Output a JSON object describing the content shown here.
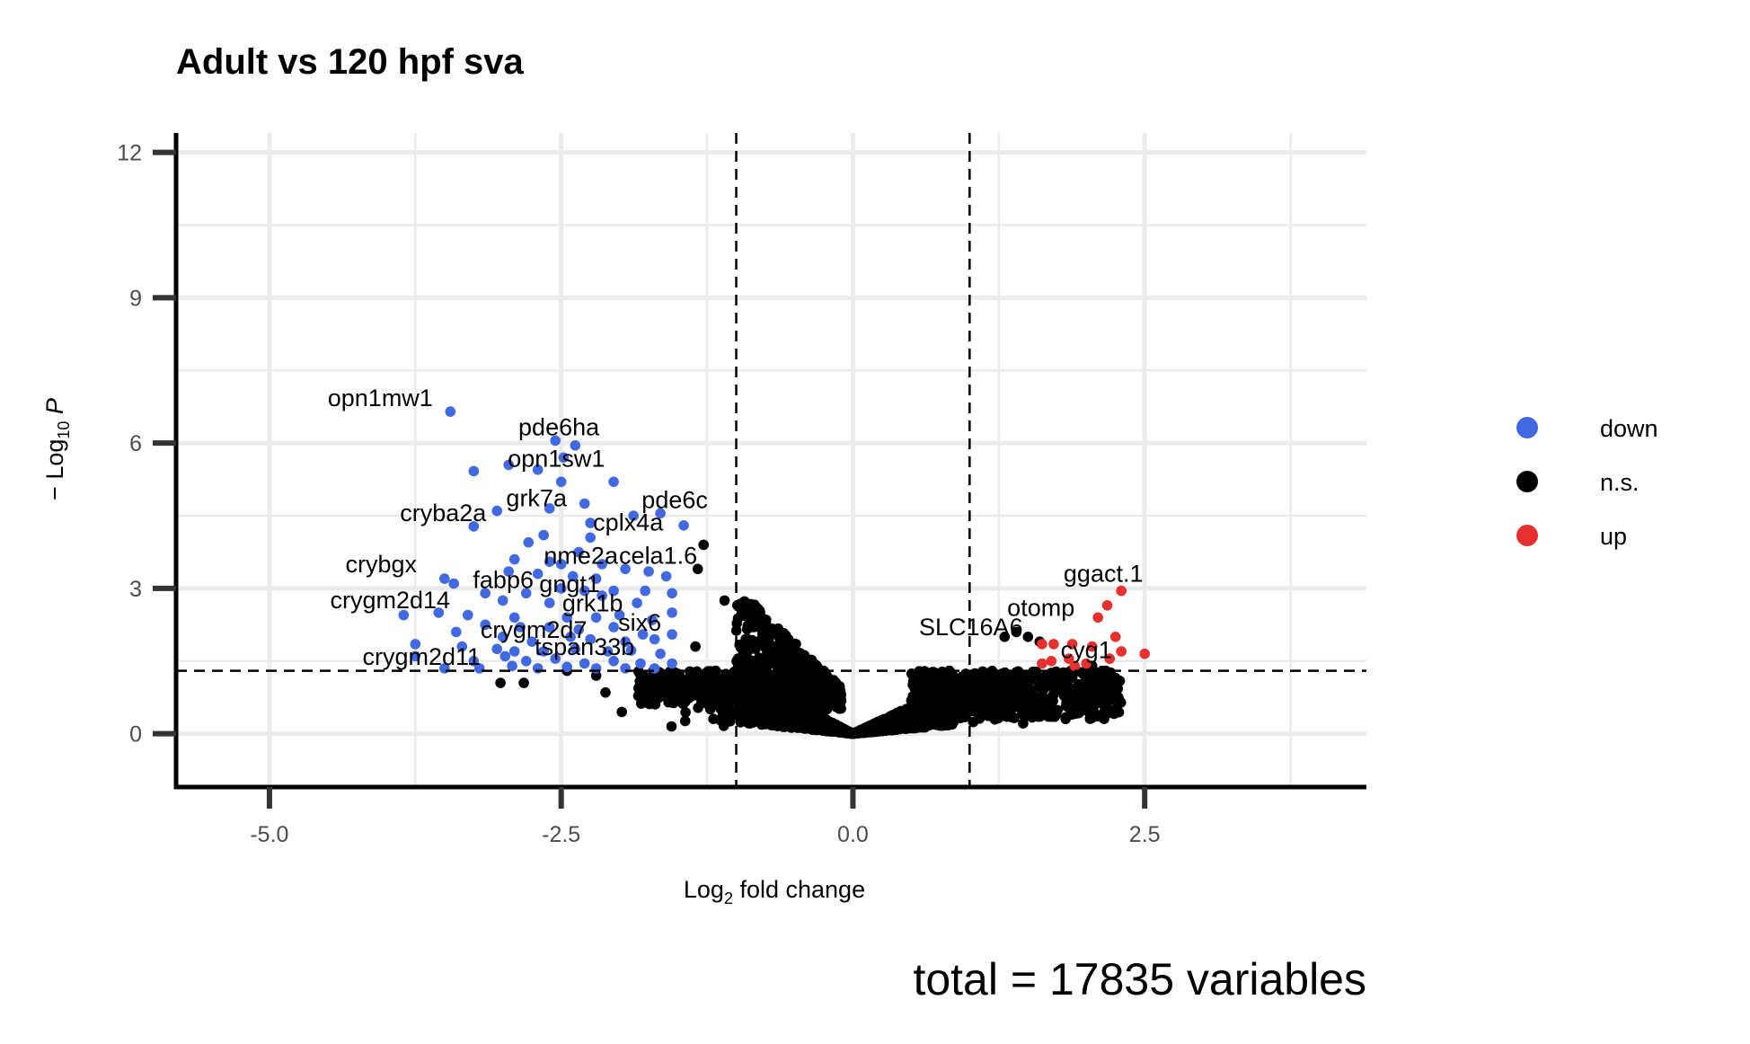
{
  "chart_data": {
    "type": "scatter",
    "title": "Adult vs 120 hpf sva",
    "xlabel_parts": [
      "Log",
      "2",
      " fold change"
    ],
    "ylabel_parts": [
      "− Log",
      "10",
      " ",
      "P"
    ],
    "xlim": [
      -5.8,
      4.4
    ],
    "ylim": [
      -1.1,
      12.4
    ],
    "x_ticks": [
      -5.0,
      -2.5,
      0.0,
      2.5
    ],
    "x_tick_labels": [
      "-5.0",
      "-2.5",
      "0.0",
      "2.5"
    ],
    "y_ticks": [
      0,
      3,
      6,
      9,
      12
    ],
    "y_tick_labels": [
      "0",
      "3",
      "6",
      "9",
      "12"
    ],
    "fc_cutoffs": [
      -1,
      1
    ],
    "p_cutoff_neglog10": 1.3,
    "grid": true,
    "legend_position": "right",
    "colors": {
      "down": "#4169e1",
      "ns": "#000000",
      "up": "#e8302e"
    },
    "series": [
      {
        "name": "down",
        "color": "#4169e1"
      },
      {
        "name": "n.s.",
        "color": "#000000"
      },
      {
        "name": "up",
        "color": "#e8302e"
      }
    ],
    "labeled_points": [
      {
        "label": "opn1mw1",
        "x": -3.45,
        "y": 6.65,
        "group": "down"
      },
      {
        "label": "pde6ha",
        "x": -2.52,
        "y": 6.05,
        "group": "down"
      },
      {
        "label": "opn1sw1",
        "x": -3.25,
        "y": 5.42,
        "group": "down"
      },
      {
        "label": "grk7a",
        "x": -3.05,
        "y": 4.6,
        "group": "down"
      },
      {
        "label": "pde6c",
        "x": -1.85,
        "y": 4.55,
        "group": "down"
      },
      {
        "label": "cryba2a",
        "x": -3.25,
        "y": 4.28,
        "group": "down"
      },
      {
        "label": "cplx4a",
        "x": -2.25,
        "y": 4.05,
        "group": "down"
      },
      {
        "label": "nme2a",
        "x": -2.5,
        "y": 3.4,
        "group": "down"
      },
      {
        "label": "cela1.6",
        "x": -1.5,
        "y": 3.4,
        "group": "down"
      },
      {
        "label": "crybgx",
        "x": -3.55,
        "y": 3.2,
        "group": "down"
      },
      {
        "label": "fabp6",
        "x": -3.15,
        "y": 2.9,
        "group": "down"
      },
      {
        "label": "gngt1",
        "x": -2.15,
        "y": 2.85,
        "group": "down"
      },
      {
        "label": "crygm2d14",
        "x": -3.55,
        "y": 2.5,
        "group": "down"
      },
      {
        "label": "grk1b",
        "x": -2.0,
        "y": 2.45,
        "group": "down"
      },
      {
        "label": "crygm2d7",
        "x": -2.75,
        "y": 1.9,
        "group": "down"
      },
      {
        "label": "six6",
        "x": -1.75,
        "y": 2.05,
        "group": "down"
      },
      {
        "label": "tspan33b",
        "x": -2.5,
        "y": 1.55,
        "group": "down"
      },
      {
        "label": "crygm2d11",
        "x": -3.45,
        "y": 1.35,
        "group": "down"
      },
      {
        "label": "ggact.1",
        "x": 2.3,
        "y": 2.95,
        "group": "up"
      },
      {
        "label": "otomp",
        "x": 2.15,
        "y": 2.4,
        "group": "up"
      },
      {
        "label": "SLC16A6",
        "x": 1.55,
        "y": 1.85,
        "group": "up"
      },
      {
        "label": "cyg1",
        "x": 2.0,
        "y": 1.45,
        "group": "up"
      }
    ],
    "summary": {
      "total": 17835
    },
    "caption": "total = 17835 variables"
  },
  "legend": {
    "items": [
      {
        "label": "down",
        "color": "#4169e1"
      },
      {
        "label": "n.s.",
        "color": "#000000"
      },
      {
        "label": "up",
        "color": "#e8302e"
      }
    ]
  }
}
